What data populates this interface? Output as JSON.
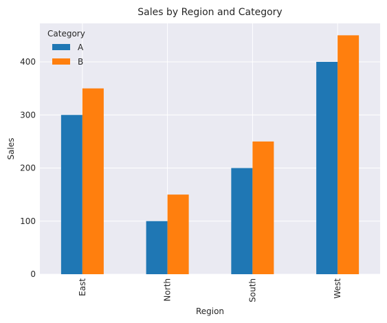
{
  "chart_data": {
    "type": "bar",
    "title": "Sales by Region and Category",
    "xlabel": "Region",
    "ylabel": "Sales",
    "categories": [
      "East",
      "North",
      "South",
      "West"
    ],
    "series": [
      {
        "name": "A",
        "values": [
          300,
          100,
          200,
          400
        ],
        "color": "#1f77b4"
      },
      {
        "name": "B",
        "values": [
          350,
          150,
          250,
          450
        ],
        "color": "#ff7f0e"
      }
    ],
    "yticks": [
      0,
      100,
      200,
      300,
      400
    ],
    "ylim": [
      0,
      472.5
    ],
    "grid": true,
    "legend": {
      "title": "Category",
      "placement": "top-left"
    },
    "colors": {
      "plot_background": "#eaeaf2",
      "grid": "#ffffff",
      "text": "#262626"
    }
  }
}
